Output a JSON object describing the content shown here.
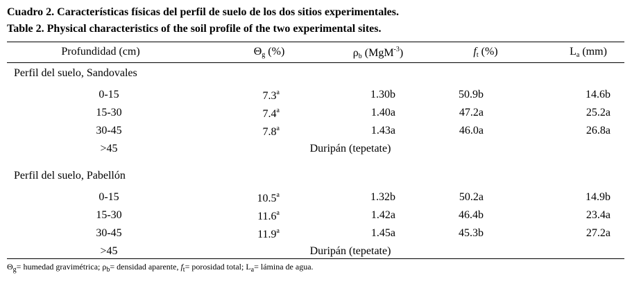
{
  "title": [
    "Cuadro 2. Características físicas del perfil de suelo de los dos sitios experimentales.",
    "Table 2. Physical characteristics of the soil profile of the two experimental sites."
  ],
  "table": {
    "header": [
      [
        {
          "text": "Profundidad (cm)"
        }
      ],
      [
        {
          "text": "Θ"
        },
        {
          "sub": "g"
        },
        {
          "text": " (%)"
        }
      ],
      [
        {
          "text": "ρ"
        },
        {
          "sub": "b"
        },
        {
          "text": " (MgM"
        },
        {
          "sup": "-3"
        },
        {
          "text": ")"
        }
      ],
      [
        {
          "italic": "f"
        },
        {
          "sub": "t"
        },
        {
          "text": " (%)"
        }
      ],
      [
        {
          "text": "L"
        },
        {
          "sub": "a"
        },
        {
          "text": " (mm)"
        }
      ]
    ],
    "sections": [
      {
        "label": "Perfil del suelo, Sandovales",
        "rows": [
          [
            "0-15",
            [
              {
                "text": "7.3"
              },
              {
                "sup": "a"
              }
            ],
            "1.30b",
            "50.9b",
            "14.6b"
          ],
          [
            "15-30",
            [
              {
                "text": "7.4"
              },
              {
                "sup": "a"
              }
            ],
            "1.40a",
            "47.2a",
            "25.2a"
          ],
          [
            "30-45",
            [
              {
                "text": "7.8"
              },
              {
                "sup": "a"
              }
            ],
            "1.43a",
            "46.0a",
            "26.8a"
          ]
        ],
        "last_row": {
          "depth": ">45",
          "text": "Duripán (tepetate)"
        }
      },
      {
        "label": "Perfil del suelo, Pabellón",
        "rows": [
          [
            "0-15",
            [
              {
                "text": "10.5"
              },
              {
                "sup": "a"
              }
            ],
            "1.32b",
            "50.2a",
            "14.9b"
          ],
          [
            "15-30",
            [
              {
                "text": "11.6"
              },
              {
                "sup": "a"
              }
            ],
            "1.42a",
            "46.4b",
            "23.4a"
          ],
          [
            "30-45",
            [
              {
                "text": "11.9"
              },
              {
                "sup": "a"
              }
            ],
            "1.45a",
            "45.3b",
            "27.2a"
          ]
        ],
        "last_row": {
          "depth": ">45",
          "text": "Duripán (tepetate)"
        }
      }
    ],
    "footnote": [
      {
        "text": "Θ"
      },
      {
        "sub": "g"
      },
      {
        "text": "= humedad gravimétrica; ρ"
      },
      {
        "sub": "b"
      },
      {
        "text": "= densidad aparente, "
      },
      {
        "italic": "f"
      },
      {
        "sub": "t"
      },
      {
        "text": "= porosidad total; L"
      },
      {
        "sub": "a"
      },
      {
        "text": "= lámina de agua."
      }
    ]
  }
}
